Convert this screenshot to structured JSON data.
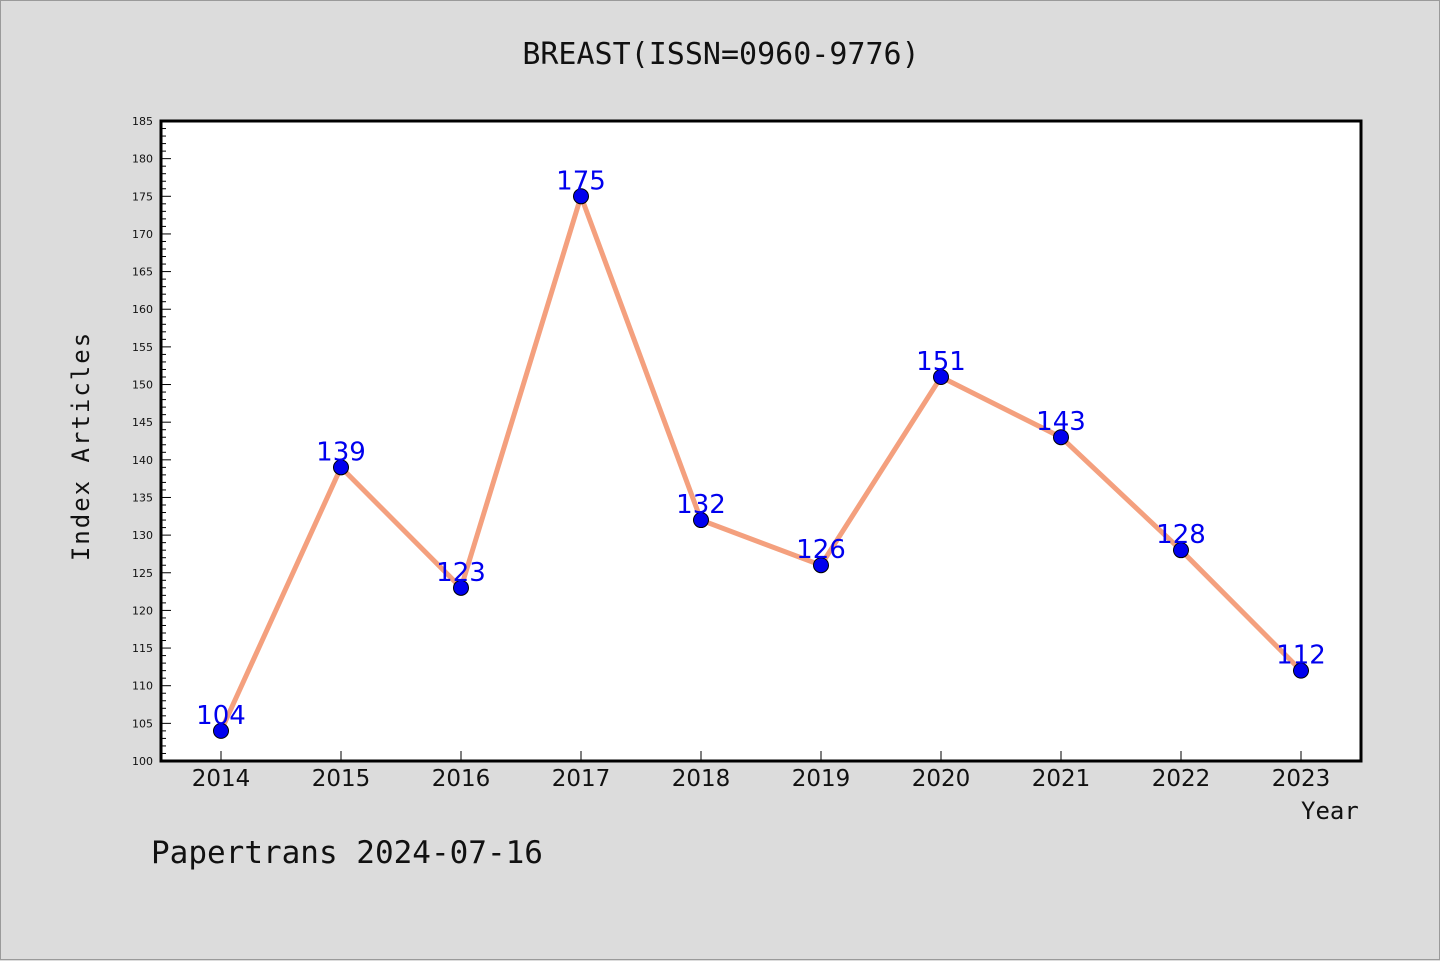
{
  "title": "BREAST(ISSN=0960-9776)",
  "footer": "Papertrans 2024-07-16",
  "chart_data": {
    "type": "line",
    "title": "BREAST(ISSN=0960-9776)",
    "xlabel": "Year",
    "ylabel": "Index Articles",
    "categories": [
      "2014",
      "2015",
      "2016",
      "2017",
      "2018",
      "2019",
      "2020",
      "2021",
      "2022",
      "2023"
    ],
    "series": [
      {
        "values": [
          104,
          139,
          123,
          175,
          132,
          126,
          151,
          143,
          128,
          112
        ]
      }
    ],
    "data_labels": [
      "104",
      "139",
      "123",
      "175",
      "132",
      "126",
      "151",
      "143",
      "128",
      "112"
    ],
    "ylim": [
      100,
      185
    ],
    "y_ticks": [
      100,
      105,
      110,
      115,
      120,
      125,
      130,
      135,
      140,
      145,
      150,
      155,
      160,
      165,
      170,
      175,
      180,
      185
    ],
    "grid": false,
    "legend": "none",
    "colors": {
      "line": "#f4a07e",
      "marker": "#0000ee",
      "label": "#0000ee",
      "background": "#dcdcdc",
      "plot_area": "#ffffff"
    }
  }
}
